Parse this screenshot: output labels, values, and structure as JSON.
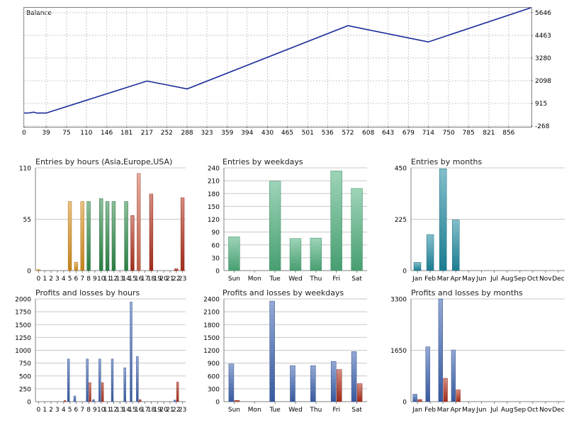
{
  "colors": {
    "balance_line": "#1a2a9a",
    "grid": "#c8c8c8",
    "axis": "#808080",
    "blue": "#3d63b0",
    "red": "#b0301c",
    "green": "#2e8b4a",
    "orange": "#d9921f",
    "salmon": "#d06a50",
    "mint": "#4fb07e",
    "teal": "#1e8aa0"
  },
  "chart_data": [
    {
      "id": "balance",
      "type": "line",
      "title": "Balance",
      "x_ticks": [
        "0",
        "39",
        "75",
        "110",
        "146",
        "181",
        "217",
        "252",
        "288",
        "323",
        "359",
        "394",
        "430",
        "465",
        "501",
        "536",
        "572",
        "608",
        "643",
        "679",
        "714",
        "750",
        "785",
        "821",
        "856"
      ],
      "y_ticks": [
        "-268",
        "915",
        "2098",
        "3280",
        "4463",
        "5646"
      ],
      "xlim": [
        0,
        895
      ],
      "ylim": [
        -268,
        5900
      ],
      "grid": true,
      "x": [
        0,
        8,
        17,
        22,
        39,
        217,
        288,
        572,
        714,
        895
      ],
      "y": [
        410,
        414,
        460,
        410,
        410,
        2080,
        1670,
        4970,
        4120,
        5900
      ]
    },
    {
      "id": "entries-hours",
      "type": "bar",
      "title": "Entries by hours (Asia,Europe,USA)",
      "categories": [
        "0",
        "1",
        "2",
        "3",
        "4",
        "5",
        "6",
        "7",
        "8",
        "9",
        "10",
        "11",
        "12",
        "13",
        "14",
        "15",
        "16",
        "17",
        "18",
        "19",
        "20",
        "21",
        "22",
        "23"
      ],
      "y_ticks": [
        "0",
        "55",
        "110"
      ],
      "ylim": [
        0,
        110
      ],
      "series": [
        {
          "values": [
            1,
            0,
            0,
            0,
            0,
            74,
            9,
            74,
            74,
            0,
            77,
            74,
            74,
            0,
            74,
            59,
            104,
            0,
            82,
            0,
            0,
            0,
            2,
            78
          ]
        }
      ],
      "bar_colors": [
        "#d9921f",
        "#d9921f",
        "#d9921f",
        "#d9921f",
        "#d9921f",
        "#d9921f",
        "#d9921f",
        "#d9921f",
        "#2e8b4a",
        "#2e8b4a",
        "#2e8b4a",
        "#2e8b4a",
        "#2e8b4a",
        "#2e8b4a",
        "#2e8b4a",
        "#b0301c",
        "#d06a50",
        "#b0301c",
        "#b0301c",
        "#b0301c",
        "#b0301c",
        "#b0301c",
        "#b0301c",
        "#b0301c"
      ]
    },
    {
      "id": "entries-weekdays",
      "type": "bar",
      "title": "Entries by weekdays",
      "categories": [
        "Sun",
        "Mon",
        "Tue",
        "Wed",
        "Thu",
        "Fri",
        "Sat"
      ],
      "y_ticks": [
        "0",
        "30",
        "60",
        "90",
        "120",
        "150",
        "180",
        "210",
        "240"
      ],
      "ylim": [
        0,
        240
      ],
      "series": [
        {
          "values": [
            79,
            0,
            209,
            75,
            76,
            233,
            192
          ]
        }
      ],
      "bar_colors": [
        "#4fb07e",
        "#4fb07e",
        "#4fb07e",
        "#4fb07e",
        "#4fb07e",
        "#4fb07e",
        "#4fb07e"
      ]
    },
    {
      "id": "entries-months",
      "type": "bar",
      "title": "Entries by months",
      "categories": [
        "Jan",
        "Feb",
        "Mar",
        "Apr",
        "May",
        "Jun",
        "Jul",
        "Aug",
        "Sep",
        "Oct",
        "Nov",
        "Dec"
      ],
      "y_ticks": [
        "0",
        "225",
        "450"
      ],
      "ylim": [
        0,
        450
      ],
      "series": [
        {
          "values": [
            36,
            158,
            446,
            222,
            0,
            0,
            0,
            0,
            0,
            0,
            0,
            0
          ]
        }
      ],
      "bar_colors": [
        "#1e8aa0",
        "#1e8aa0",
        "#1e8aa0",
        "#1e8aa0",
        "#1e8aa0",
        "#1e8aa0",
        "#1e8aa0",
        "#1e8aa0",
        "#1e8aa0",
        "#1e8aa0",
        "#1e8aa0",
        "#1e8aa0"
      ]
    },
    {
      "id": "pl-hours",
      "type": "bar",
      "title": "Profits and losses by hours",
      "categories": [
        "0",
        "1",
        "2",
        "3",
        "4",
        "5",
        "6",
        "7",
        "8",
        "9",
        "10",
        "11",
        "12",
        "13",
        "14",
        "15",
        "16",
        "17",
        "18",
        "19",
        "20",
        "21",
        "22",
        "23"
      ],
      "y_ticks": [
        "0",
        "250",
        "500",
        "750",
        "1000",
        "1250",
        "1500",
        "1750",
        "2000"
      ],
      "ylim": [
        0,
        2000
      ],
      "series": [
        {
          "values": [
            0,
            0,
            0,
            0,
            0,
            830,
            110,
            0,
            830,
            40,
            830,
            0,
            830,
            0,
            660,
            1940,
            880,
            0,
            0,
            0,
            0,
            0,
            30,
            0
          ]
        },
        {
          "values": [
            0,
            0,
            0,
            0,
            20,
            0,
            0,
            0,
            370,
            0,
            370,
            0,
            0,
            0,
            0,
            0,
            40,
            0,
            0,
            0,
            0,
            0,
            380,
            0
          ]
        }
      ]
    },
    {
      "id": "pl-weekdays",
      "type": "bar",
      "title": "Profits and losses by weekdays",
      "categories": [
        "Sun",
        "Mon",
        "Tue",
        "Wed",
        "Thu",
        "Fri",
        "Sat"
      ],
      "y_ticks": [
        "0",
        "300",
        "600",
        "900",
        "1200",
        "1500",
        "1800",
        "2100",
        "2400"
      ],
      "ylim": [
        0,
        2400
      ],
      "series": [
        {
          "values": [
            880,
            0,
            2350,
            840,
            840,
            940,
            1170
          ]
        },
        {
          "values": [
            30,
            0,
            0,
            0,
            0,
            750,
            420
          ]
        }
      ]
    },
    {
      "id": "pl-months",
      "type": "bar",
      "title": "Profits and losses by months",
      "categories": [
        "Jan",
        "Feb",
        "Mar",
        "Apr",
        "May",
        "Jun",
        "Jul",
        "Aug",
        "Sep",
        "Oct",
        "Nov",
        "Dec"
      ],
      "y_ticks": [
        "0",
        "1650",
        "3300"
      ],
      "ylim": [
        0,
        3300
      ],
      "series": [
        {
          "values": [
            240,
            1760,
            3300,
            1660,
            0,
            0,
            0,
            0,
            0,
            0,
            0,
            0
          ]
        },
        {
          "values": [
            70,
            0,
            750,
            380,
            0,
            0,
            0,
            0,
            0,
            0,
            0,
            0
          ]
        }
      ]
    }
  ]
}
